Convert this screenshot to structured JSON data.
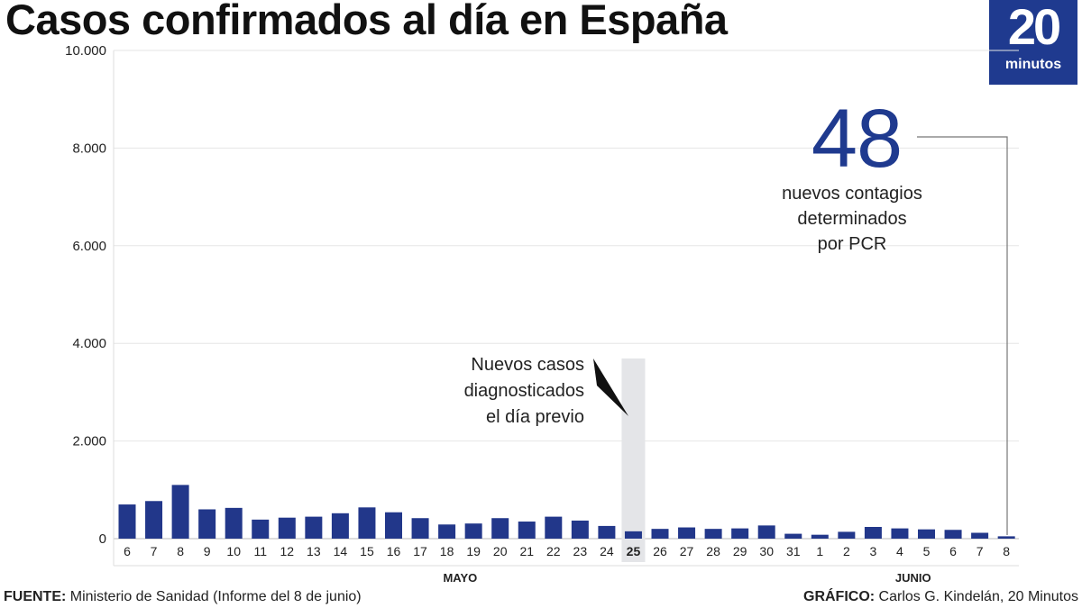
{
  "header": {
    "title": "Casos confirmados al día en España"
  },
  "logo": {
    "number": "20",
    "word": "minutos",
    "color": "#1f3a8f"
  },
  "callout": {
    "value": "48",
    "lines": [
      "nuevos contagios",
      "determinados",
      "por PCR"
    ]
  },
  "annotation": {
    "lines": [
      "Nuevos casos",
      "diagnosticados",
      "el día previo"
    ]
  },
  "footer": {
    "source_label": "FUENTE:",
    "source_text": " Ministerio de Sanidad (Informe del 8 de junio)",
    "credit_label": "GRÁFICO:",
    "credit_text": " Carlos G. Kindelán, 20 Minutos"
  },
  "chart_data": {
    "type": "bar",
    "title": "Casos confirmados al día en España",
    "categories": [
      "6",
      "7",
      "8",
      "9",
      "10",
      "11",
      "12",
      "13",
      "14",
      "15",
      "16",
      "17",
      "18",
      "19",
      "20",
      "21",
      "22",
      "23",
      "24",
      "25",
      "26",
      "27",
      "28",
      "29",
      "30",
      "31",
      "1",
      "2",
      "3",
      "4",
      "5",
      "6",
      "7",
      "8"
    ],
    "values": [
      700,
      770,
      1100,
      600,
      630,
      390,
      430,
      450,
      520,
      640,
      540,
      420,
      290,
      310,
      420,
      350,
      450,
      370,
      260,
      150,
      200,
      230,
      200,
      210,
      270,
      100,
      80,
      140,
      240,
      210,
      190,
      180,
      120,
      48
    ],
    "highlight_category_index": 19,
    "month_labels": [
      {
        "label": "MAYO",
        "category_index": 12.5
      },
      {
        "label": "JUNIO",
        "category_index": 29.5
      }
    ],
    "ylim": [
      0,
      10000
    ],
    "yticks": [
      0,
      2000,
      4000,
      6000,
      8000,
      10000
    ],
    "ytick_labels": [
      "0",
      "2.000",
      "4.000",
      "6.000",
      "8.000",
      "10.000"
    ],
    "bar_color": "#22378a",
    "grid": true,
    "xlabel": "",
    "ylabel": ""
  }
}
